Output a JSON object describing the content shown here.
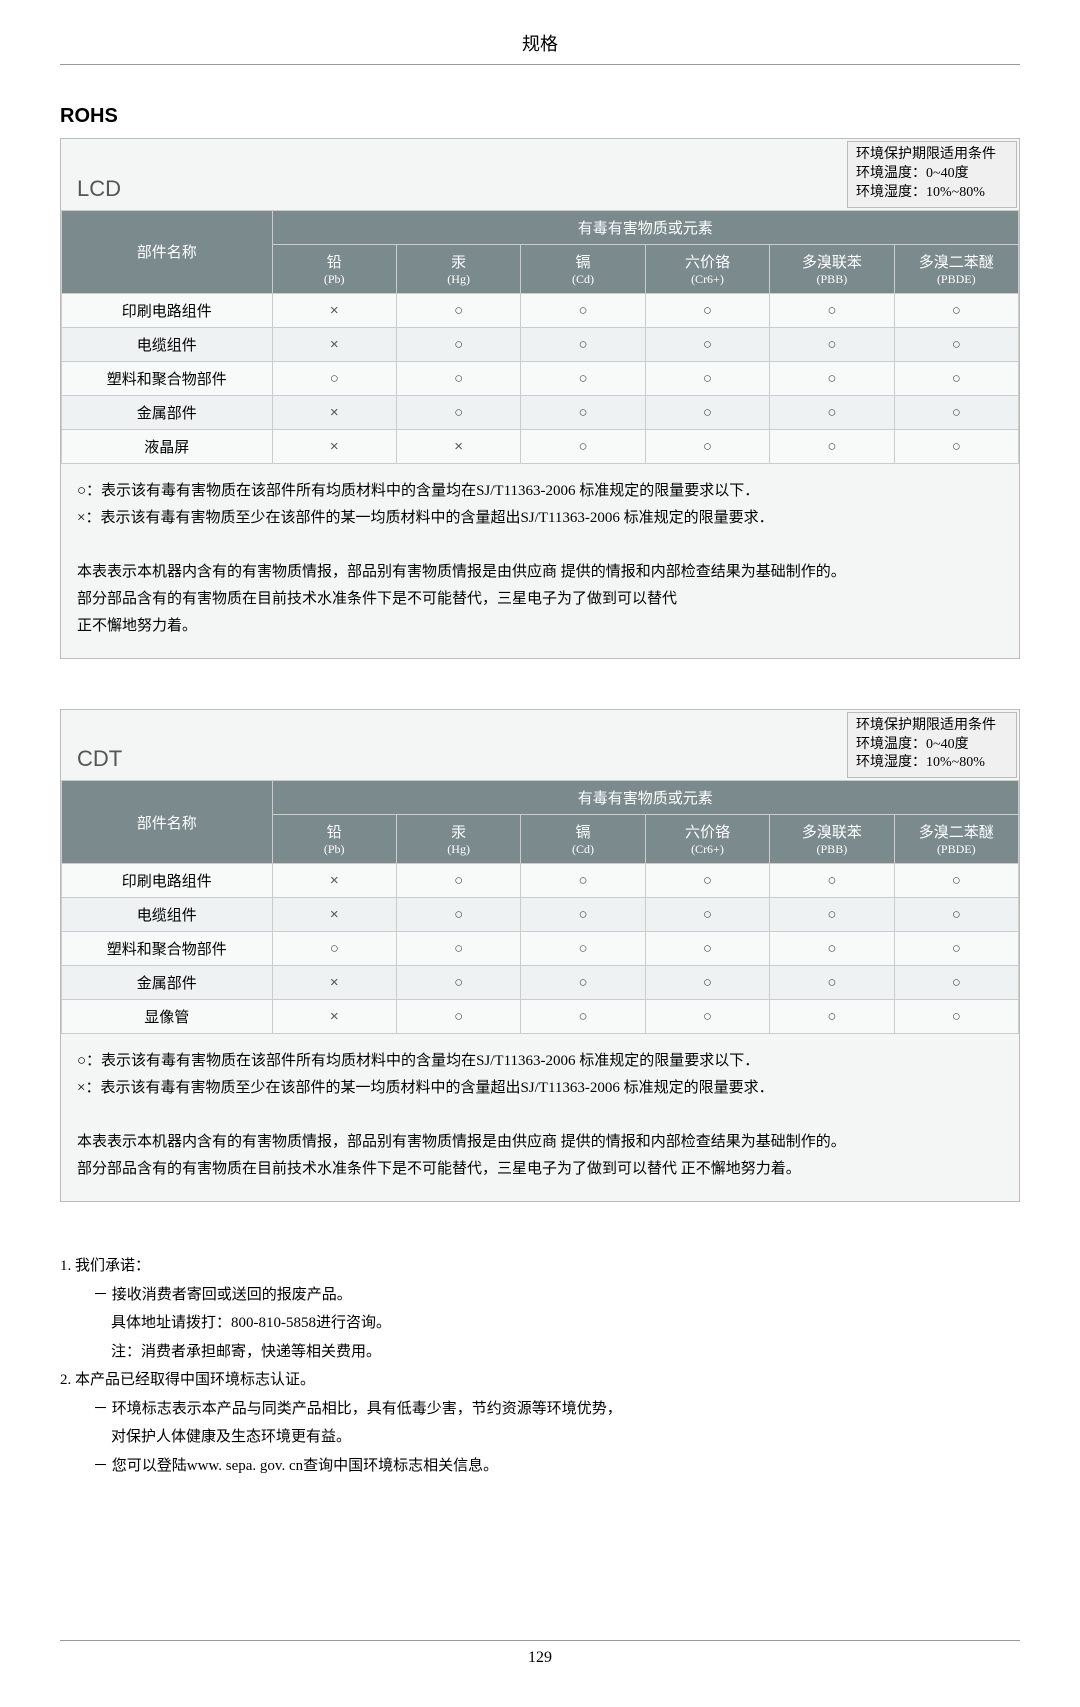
{
  "page": {
    "header": "规格",
    "footer_page": "129"
  },
  "section_title": "ROHS",
  "env_box": {
    "line1": "环境保护期限适用条件",
    "line2": "环境温度：0~40度",
    "line3": "环境湿度：10%~80%"
  },
  "table_headers": {
    "part": "部件名称",
    "group": "有毒有害物质或元素",
    "pb": "铅",
    "pb_sub": "(Pb)",
    "hg": "汞",
    "hg_sub": "(Hg)",
    "cd": "镉",
    "cd_sub": "(Cd)",
    "cr": "六价铬",
    "cr_sub": "(Cr6+)",
    "pbb": "多溴联苯",
    "pbb_sub": "(PBB)",
    "pbde": "多溴二苯醚",
    "pbde_sub": "(PBDE)"
  },
  "lcd": {
    "label": "LCD",
    "rows": [
      {
        "name": "印刷电路组件",
        "pb": "×",
        "hg": "○",
        "cd": "○",
        "cr": "○",
        "pbb": "○",
        "pbde": "○"
      },
      {
        "name": "电缆组件",
        "pb": "×",
        "hg": "○",
        "cd": "○",
        "cr": "○",
        "pbb": "○",
        "pbde": "○"
      },
      {
        "name": "塑料和聚合物部件",
        "pb": "○",
        "hg": "○",
        "cd": "○",
        "cr": "○",
        "pbb": "○",
        "pbde": "○"
      },
      {
        "name": "金属部件",
        "pb": "×",
        "hg": "○",
        "cd": "○",
        "cr": "○",
        "pbb": "○",
        "pbde": "○"
      },
      {
        "name": "液晶屏",
        "pb": "×",
        "hg": "×",
        "cd": "○",
        "cr": "○",
        "pbb": "○",
        "pbde": "○"
      }
    ],
    "note_o": "○：表示该有毒有害物质在该部件所有均质材料中的含量均在SJ/T11363-2006 标准规定的限量要求以下．",
    "note_x": "×：表示该有毒有害物质至少在该部件的某一均质材料中的含量超出SJ/T11363-2006 标准规定的限量要求．",
    "para1": "本表表示本机器内含有的有害物质情报，部品别有害物质情报是由供应商 提供的情报和内部检查结果为基础制作的。",
    "para2": "部分部品含有的有害物质在目前技术水准条件下是不可能替代，三星电子为了做到可以替代",
    "para3": "正不懈地努力着。"
  },
  "cdt": {
    "label": "CDT",
    "rows": [
      {
        "name": "印刷电路组件",
        "pb": "×",
        "hg": "○",
        "cd": "○",
        "cr": "○",
        "pbb": "○",
        "pbde": "○"
      },
      {
        "name": "电缆组件",
        "pb": "×",
        "hg": "○",
        "cd": "○",
        "cr": "○",
        "pbb": "○",
        "pbde": "○"
      },
      {
        "name": "塑料和聚合物部件",
        "pb": "○",
        "hg": "○",
        "cd": "○",
        "cr": "○",
        "pbb": "○",
        "pbde": "○"
      },
      {
        "name": "金属部件",
        "pb": "×",
        "hg": "○",
        "cd": "○",
        "cr": "○",
        "pbb": "○",
        "pbde": "○"
      },
      {
        "name": "显像管",
        "pb": "×",
        "hg": "○",
        "cd": "○",
        "cr": "○",
        "pbb": "○",
        "pbde": "○"
      }
    ],
    "note_o": "○：表示该有毒有害物质在该部件所有均质材料中的含量均在SJ/T11363-2006 标准规定的限量要求以下．",
    "note_x": "×：表示该有毒有害物质至少在该部件的某一均质材料中的含量超出SJ/T11363-2006 标准规定的限量要求．",
    "para1": "本表表示本机器内含有的有害物质情报，部品别有害物质情报是由供应商 提供的情报和内部检查结果为基础制作的。",
    "para2": "部分部品含有的有害物质在目前技术水准条件下是不可能替代，三星电子为了做到可以替代 正不懈地努力着。"
  },
  "commit": {
    "l1": "1. 我们承诺：",
    "l1a": "－ 接收消费者寄回或送回的报废产品。",
    "l1b": "具体地址请拨打：800-810-5858进行咨询。",
    "l1c": "注：消费者承担邮寄，快递等相关费用。",
    "l2": "2. 本产品已经取得中国环境标志认证。",
    "l2a": "－ 环境标志表示本产品与同类产品相比，具有低毒少害，节约资源等环境优势，",
    "l2b": "对保护人体健康及生态环境更有益。",
    "l2c": "－ 您可以登陆www. sepa. gov. cn查询中国环境标志相关信息。"
  }
}
